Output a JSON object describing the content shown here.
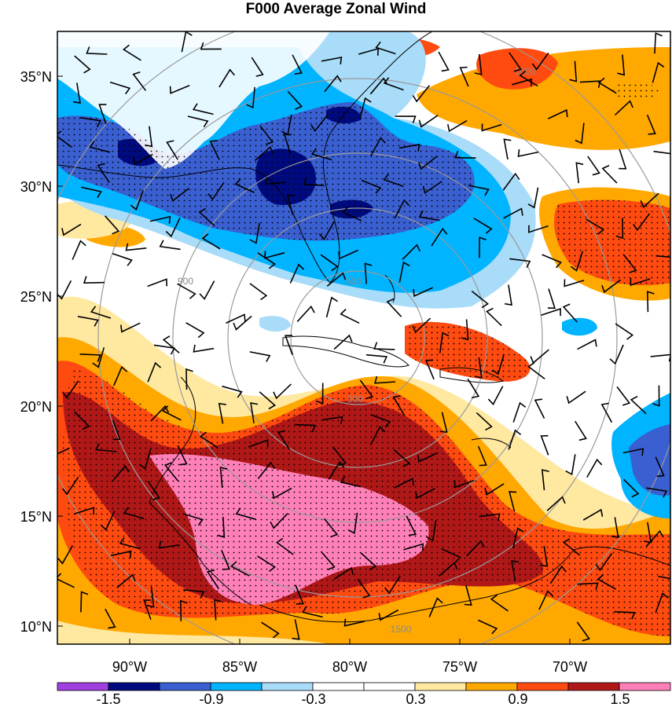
{
  "title": "F000 Average Zonal Wind",
  "map": {
    "lat_ticks": [
      "35°N",
      "30°N",
      "25°N",
      "20°N",
      "15°N",
      "10°N"
    ],
    "lon_ticks": [
      "90°W",
      "85°W",
      "80°W",
      "75°W",
      "70°W"
    ],
    "range_ring_labels": [
      "300",
      "500",
      "900",
      "1000",
      "1500"
    ]
  },
  "colorbar": {
    "labels": [
      "-1.5",
      "-0.9",
      "-0.3",
      "0.3",
      "0.9",
      "1.5"
    ],
    "colors": [
      "#a040e0",
      "#000a7f",
      "#3a5fd0",
      "#00b4ff",
      "#a8dcf8",
      "#ffffff",
      "#ffffff",
      "#ffe8a0",
      "#ffa800",
      "#ff4a10",
      "#b01818",
      "#ff80b8"
    ]
  },
  "colors": {
    "strong_negative": "#000a7f",
    "negative": "#3a5fd0",
    "weak_negative": "#00b4ff",
    "faint_negative": "#a8dcf8",
    "faint_positive": "#ffe8a0",
    "weak_positive": "#ffa800",
    "positive": "#ff4a10",
    "strong_positive": "#b01818",
    "max_positive": "#ff80b8"
  }
}
